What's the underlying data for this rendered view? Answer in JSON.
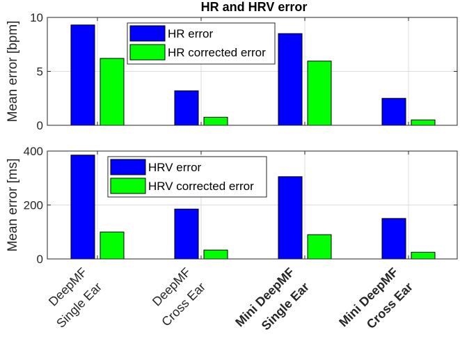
{
  "chart_data": [
    {
      "type": "bar",
      "title": "HR and HRV error",
      "ylabel": "Mean error [bpm]",
      "xlabel": "",
      "ylim": [
        0,
        10
      ],
      "yticks": [
        0,
        5,
        10
      ],
      "grid": true,
      "legend_position": "top-center",
      "series": [
        {
          "name": "HR error",
          "color": "#0000ff",
          "values": [
            9.3,
            3.2,
            8.5,
            2.5
          ]
        },
        {
          "name": "HR corrected error",
          "color": "#00ff00",
          "values": [
            6.2,
            0.75,
            5.95,
            0.5
          ]
        }
      ]
    },
    {
      "type": "bar",
      "title": "",
      "ylabel": "Mean error [ms]",
      "xlabel": "",
      "ylim": [
        0,
        400
      ],
      "yticks": [
        0,
        200,
        400
      ],
      "grid": true,
      "legend_position": "top-left",
      "series": [
        {
          "name": "HRV error",
          "color": "#0000ff",
          "values": [
            385,
            185,
            305,
            150
          ]
        },
        {
          "name": "HRV corrected error",
          "color": "#00ff00",
          "values": [
            100,
            33,
            90,
            25
          ]
        }
      ]
    }
  ],
  "categories": [
    {
      "lines": [
        "DeepMF",
        "Single Ear"
      ],
      "bold": false
    },
    {
      "lines": [
        "DeepMF",
        "Cross Ear"
      ],
      "bold": false
    },
    {
      "lines": [
        "Mini DeepMF",
        "Single Ear"
      ],
      "bold": true
    },
    {
      "lines": [
        "Mini DeepMF",
        "Cross Ear"
      ],
      "bold": true
    }
  ]
}
